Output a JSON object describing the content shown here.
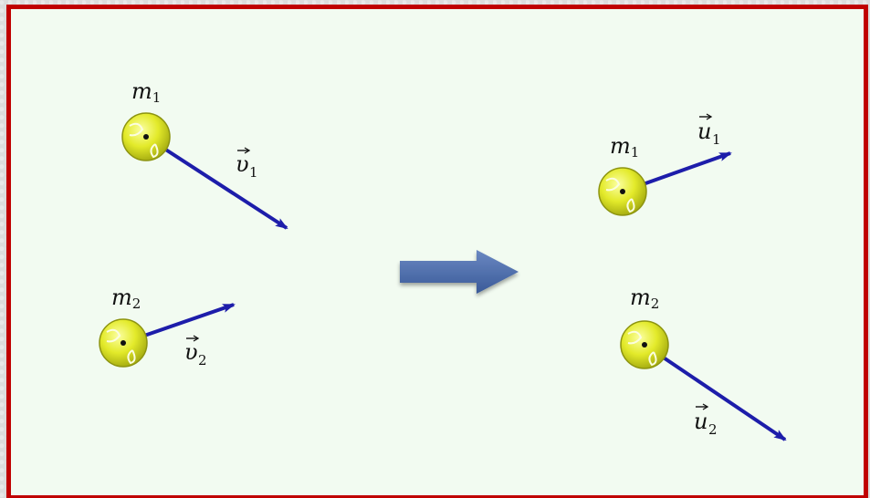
{
  "colors": {
    "border": "#c00000",
    "canvas": "#f2fbf1",
    "ball": "#e3ea2a",
    "vector": "#1d1daa",
    "transition_arrow": "#4a6aa8"
  },
  "before": {
    "ball1": {
      "mass_letter": "m",
      "mass_sub": "1",
      "velocity_letter": "υ",
      "velocity_sub": "1"
    },
    "ball2": {
      "mass_letter": "m",
      "mass_sub": "2",
      "velocity_letter": "υ",
      "velocity_sub": "2"
    }
  },
  "after": {
    "ball1": {
      "mass_letter": "m",
      "mass_sub": "1",
      "velocity_letter": "u",
      "velocity_sub": "1"
    },
    "ball2": {
      "mass_letter": "m",
      "mass_sub": "2",
      "velocity_letter": "u",
      "velocity_sub": "2"
    }
  },
  "icons": {
    "ball": "tennis-ball-icon",
    "transition": "right-arrow-icon"
  }
}
